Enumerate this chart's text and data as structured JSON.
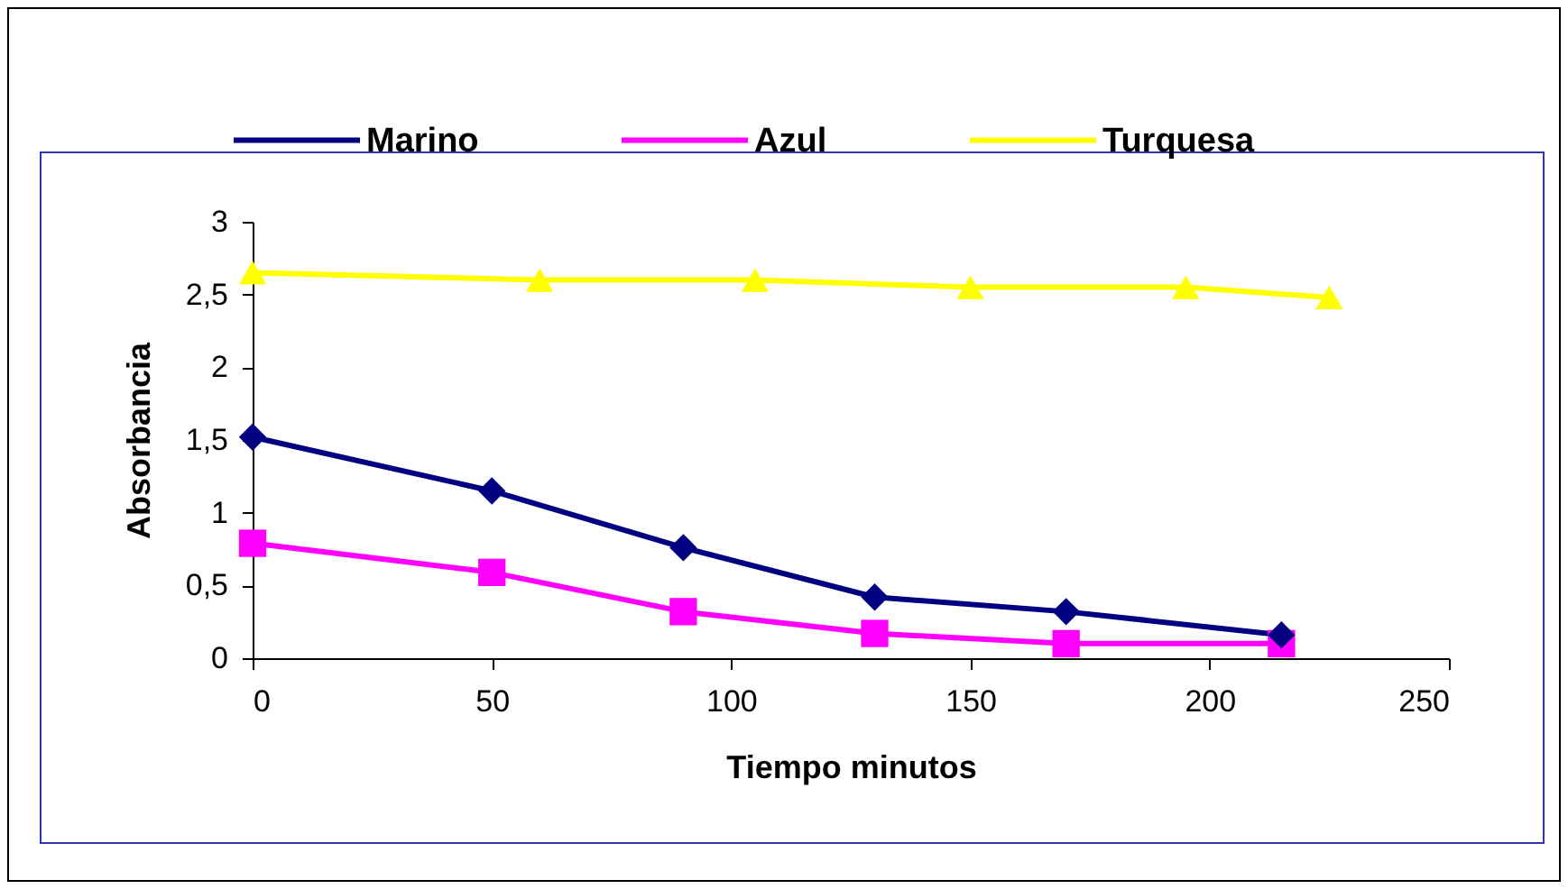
{
  "chart_data": {
    "type": "line",
    "xlabel": "Tiempo minutos",
    "ylabel": "Absorbancia",
    "xlim": [
      0,
      250
    ],
    "xticks": [
      0,
      50,
      100,
      150,
      200,
      250
    ],
    "ylim": [
      0,
      3
    ],
    "yticks": [
      0,
      {
        "value": 0.5,
        "label": "0,5"
      },
      1,
      {
        "value": 1.5,
        "label": "1,5"
      },
      2,
      {
        "value": 2.5,
        "label": "2,5"
      },
      3
    ],
    "grid": false,
    "legend": "top",
    "line_style": "solid",
    "series": [
      {
        "name": "Marino",
        "color": "#000080",
        "marker": "diamond",
        "x": [
          0,
          50,
          90,
          130,
          170,
          215
        ],
        "values": [
          1.52,
          1.15,
          0.76,
          0.42,
          0.32,
          0.16
        ]
      },
      {
        "name": "Azul",
        "color": "#ff00ff",
        "marker": "square",
        "x": [
          0,
          50,
          90,
          130,
          170,
          215
        ],
        "values": [
          0.79,
          0.59,
          0.32,
          0.17,
          0.1,
          0.1
        ]
      },
      {
        "name": "Turquesa",
        "color": "#ffff00",
        "marker": "triangle",
        "x": [
          0,
          60,
          105,
          150,
          195,
          225
        ],
        "values": [
          2.65,
          2.6,
          2.6,
          2.55,
          2.55,
          2.48
        ]
      }
    ]
  }
}
